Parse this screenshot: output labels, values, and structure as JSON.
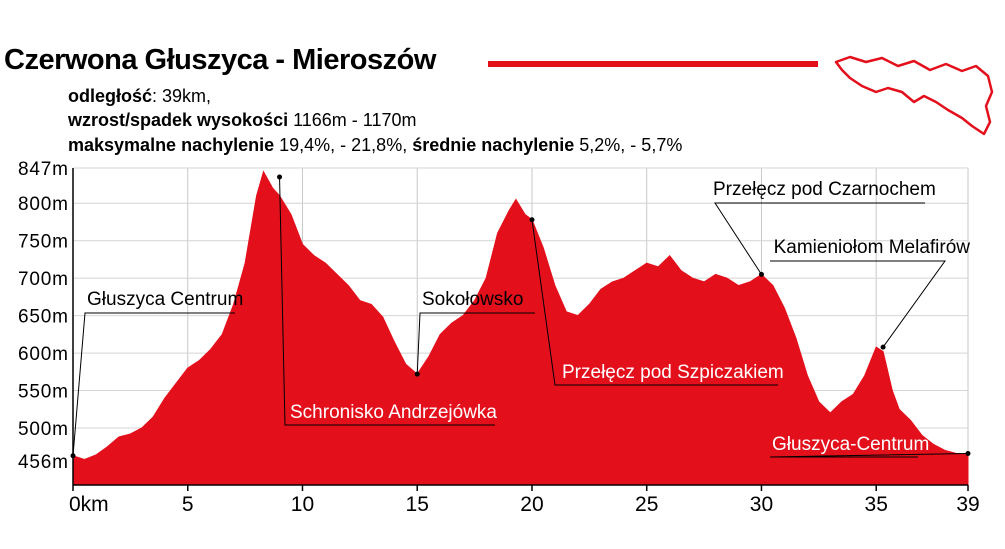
{
  "header": {
    "title": "Czerwona Głuszyca - Mieroszów",
    "distance_label": "odległość",
    "distance_value": ": 39km,",
    "elev_label": "wzrost/spadek wysokości",
    "elev_value": " 1166m - 1170m",
    "slope_max_label": "maksymalne nachylenie",
    "slope_max_value": " 19,4%, - 21,8%, ",
    "slope_avg_label": "średnie nachylenie",
    "slope_avg_value": " 5,2%, - 5,7%"
  },
  "colors": {
    "profile": "#e3101c",
    "text": "#000000",
    "label_light": "#ffffff"
  },
  "chart_data": {
    "type": "area",
    "title": "Czerwona Głuszyca - Mieroszów",
    "xlabel": "",
    "ylabel": "",
    "xlim": [
      0,
      39
    ],
    "ylim": [
      456,
      847
    ],
    "grid": true,
    "x_ticks": [
      0,
      5,
      10,
      15,
      20,
      25,
      30,
      35,
      39
    ],
    "x_tick_labels": [
      "0km",
      "5",
      "10",
      "15",
      "20",
      "25",
      "30",
      "35",
      "39"
    ],
    "y_ticks": [
      456,
      500,
      550,
      600,
      650,
      700,
      750,
      800,
      847
    ],
    "y_tick_labels": [
      "456m",
      "500m",
      "550m",
      "600m",
      "650m",
      "700m",
      "750m",
      "800m",
      "847m"
    ],
    "series": [
      {
        "x": [
          0,
          0.5,
          1,
          1.5,
          2,
          2.5,
          3,
          3.5,
          4,
          4.5,
          5,
          5.5,
          6,
          6.5,
          7,
          7.5,
          8,
          8.3,
          8.7,
          9,
          9.5,
          10,
          10.5,
          11,
          11.5,
          12,
          12.5,
          13,
          13.5,
          14,
          14.5,
          15,
          15.5,
          16,
          16.5,
          17,
          17.5,
          18,
          18.5,
          19,
          19.3,
          19.7,
          20,
          20.5,
          21,
          21.5,
          22,
          22.5,
          23,
          23.5,
          24,
          24.5,
          25,
          25.5,
          26,
          26.5,
          27,
          27.5,
          28,
          28.5,
          29,
          29.5,
          30,
          30.5,
          31,
          31.5,
          32,
          32.5,
          33,
          33.5,
          34,
          34.5,
          35,
          35.3,
          35.7,
          36,
          36.5,
          37,
          37.5,
          38,
          38.5,
          39
        ],
        "y": [
          463,
          458,
          464,
          475,
          488,
          492,
          500,
          515,
          540,
          560,
          580,
          590,
          605,
          625,
          665,
          720,
          810,
          842,
          820,
          810,
          785,
          745,
          730,
          720,
          705,
          690,
          670,
          665,
          648,
          615,
          585,
          572,
          595,
          625,
          640,
          650,
          670,
          700,
          760,
          790,
          805,
          785,
          778,
          740,
          690,
          655,
          650,
          665,
          685,
          695,
          700,
          710,
          720,
          715,
          730,
          710,
          700,
          695,
          705,
          700,
          690,
          695,
          705,
          690,
          660,
          620,
          570,
          535,
          520,
          535,
          545,
          570,
          608,
          602,
          550,
          525,
          510,
          490,
          478,
          470,
          466,
          466
        ]
      }
    ],
    "annotations": [
      {
        "text": "Głuszyca Centrum",
        "x": 0,
        "y": 463
      },
      {
        "text": "Schronisko Andrzejówka",
        "x": 9,
        "y": 835
      },
      {
        "text": "Sokołowsko",
        "x": 15,
        "y": 572
      },
      {
        "text": "Przełęcz pod Szpiczakiem",
        "x": 20,
        "y": 778
      },
      {
        "text": "Przełęcz pod Czarnochem",
        "x": 30,
        "y": 705
      },
      {
        "text": "Kamieniołom Melafirów",
        "x": 35.3,
        "y": 608
      },
      {
        "text": "Głuszyca-Centrum",
        "x": 39,
        "y": 466
      }
    ]
  }
}
